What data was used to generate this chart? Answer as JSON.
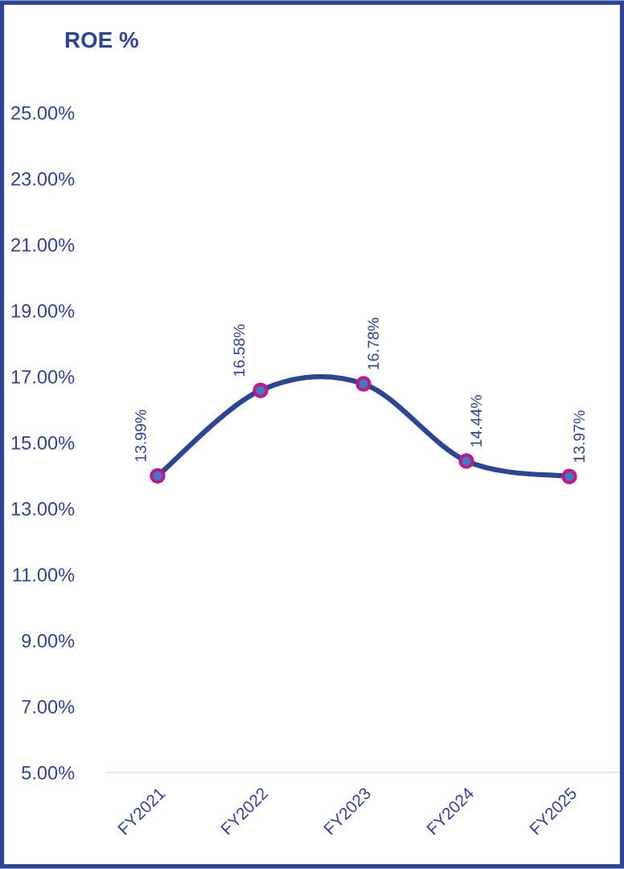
{
  "chart_data": {
    "type": "line",
    "title": "ROE %",
    "categories": [
      "FY2021",
      "FY2022",
      "FY2023",
      "FY2024",
      "FY2025"
    ],
    "series": [
      {
        "color": "#2e4494",
        "values": [
          13.99,
          16.58,
          16.78,
          14.44,
          13.97
        ],
        "value_labels": [
          "13.99%",
          "16.58%",
          "16.78%",
          "14.44%",
          "13.97%"
        ]
      }
    ],
    "ylim": [
      5,
      25
    ],
    "yticks": [
      {
        "value": 5,
        "label": "5.00%"
      },
      {
        "value": 7,
        "label": "7.00%"
      },
      {
        "value": 9,
        "label": "9.00%"
      },
      {
        "value": 11,
        "label": "11.00%"
      },
      {
        "value": 13,
        "label": "13.00%"
      },
      {
        "value": 15,
        "label": "15.00%"
      },
      {
        "value": 17,
        "label": "17.00%"
      },
      {
        "value": 19,
        "label": "19.00%"
      },
      {
        "value": 21,
        "label": "21.00%"
      },
      {
        "value": 23,
        "label": "23.00%"
      },
      {
        "value": 25,
        "label": "25.00%"
      }
    ],
    "marker": "circle",
    "line_style": "solid",
    "grid": false,
    "legend": false
  }
}
